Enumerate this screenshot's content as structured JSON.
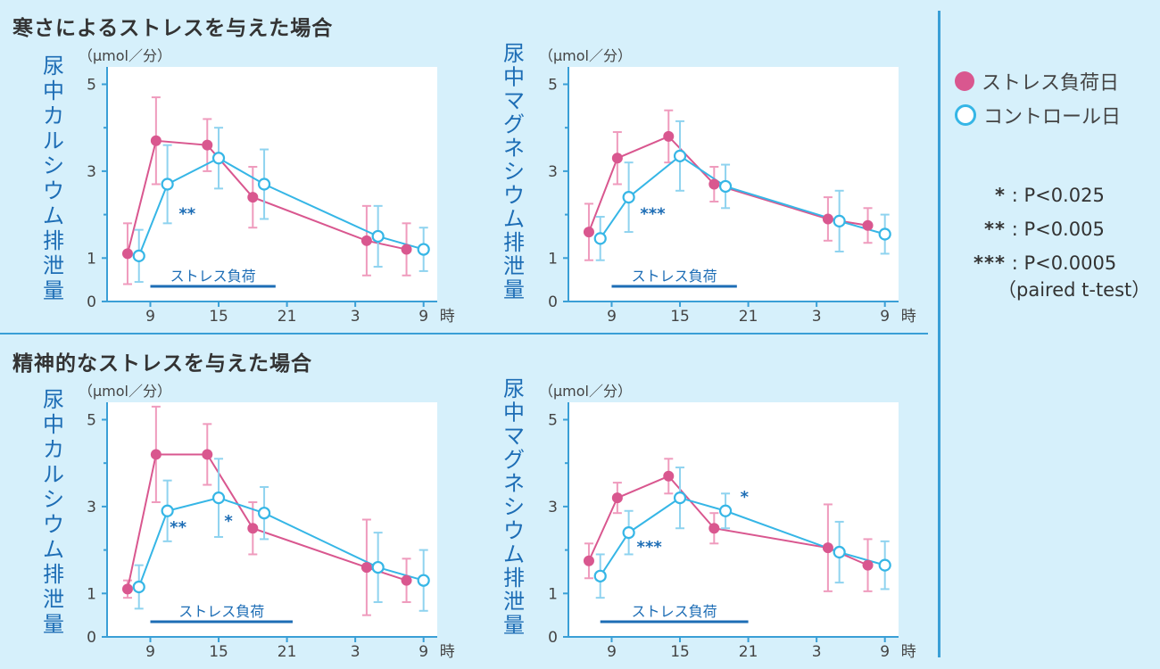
{
  "sections": [
    {
      "title": "寒さによるストレスを与えた場合"
    },
    {
      "title": "精神的なストレスを与えた場合"
    }
  ],
  "legend": {
    "stress_label": "ストレス負荷日",
    "control_label": "コントロール日",
    "stress_color": "#d9578f",
    "control_color": "#36b6e6"
  },
  "significance": [
    {
      "key": "*",
      "text": ": P<0.025"
    },
    {
      "key": "**",
      "text": ": P<0.005"
    },
    {
      "key": "***",
      "text": ": P<0.0005"
    }
  ],
  "significance_note": "（paired t-test）",
  "chart_data": [
    {
      "type": "line",
      "ylabel": "尿中カルシウム排泄量",
      "unit": "（μmol／分）",
      "xunit": "時",
      "xticks": [
        "9",
        "15",
        "21",
        "3",
        "9"
      ],
      "yticks": [
        "0",
        "1",
        "3",
        "5"
      ],
      "ylim": [
        0,
        5.4
      ],
      "stress_period_label": "ストレス負荷",
      "stress_period": [
        9,
        20
      ],
      "annotations": [
        {
          "text": "**",
          "x": 11.5,
          "y": 1.9
        }
      ],
      "series": [
        {
          "name": "ストレス負荷日",
          "x": [
            7,
            9.5,
            14,
            18,
            28,
            31.5
          ],
          "y": [
            1.1,
            3.7,
            3.6,
            2.4,
            1.4,
            1.2
          ],
          "err": [
            0.7,
            1.0,
            0.6,
            0.7,
            0.8,
            0.6
          ]
        },
        {
          "name": "コントロール日",
          "x": [
            8,
            10.5,
            15,
            19,
            29,
            33
          ],
          "y": [
            1.05,
            2.7,
            3.3,
            2.7,
            1.5,
            1.2
          ],
          "err": [
            0.6,
            0.9,
            0.7,
            0.8,
            0.7,
            0.5
          ]
        }
      ]
    },
    {
      "type": "line",
      "ylabel": "尿中マグネシウム排泄量",
      "unit": "（μmol／分）",
      "xunit": "時",
      "xticks": [
        "9",
        "15",
        "21",
        "3",
        "9"
      ],
      "yticks": [
        "0",
        "1",
        "3",
        "5"
      ],
      "ylim": [
        0,
        5.4
      ],
      "stress_period_label": "ストレス負荷",
      "stress_period": [
        9,
        20
      ],
      "annotations": [
        {
          "text": "***",
          "x": 11.5,
          "y": 1.9
        }
      ],
      "series": [
        {
          "name": "ストレス負荷日",
          "x": [
            7,
            9.5,
            14,
            18,
            28,
            31.5
          ],
          "y": [
            1.6,
            3.3,
            3.8,
            2.7,
            1.9,
            1.75
          ],
          "err": [
            0.65,
            0.6,
            0.6,
            0.4,
            0.5,
            0.4
          ]
        },
        {
          "name": "コントロール日",
          "x": [
            8,
            10.5,
            15,
            19,
            29,
            33
          ],
          "y": [
            1.45,
            2.4,
            3.35,
            2.65,
            1.85,
            1.55
          ],
          "err": [
            0.5,
            0.8,
            0.8,
            0.5,
            0.7,
            0.45
          ]
        }
      ]
    },
    {
      "type": "line",
      "ylabel": "尿中カルシウム排泄量",
      "unit": "（μmol／分）",
      "xunit": "時",
      "xticks": [
        "9",
        "15",
        "21",
        "3",
        "9"
      ],
      "yticks": [
        "0",
        "1",
        "3",
        "5"
      ],
      "ylim": [
        0,
        5.4
      ],
      "stress_period_label": "ストレス負荷",
      "stress_period": [
        9,
        21.5
      ],
      "annotations": [
        {
          "text": "**",
          "x": 10.7,
          "y": 2.4
        },
        {
          "text": "*",
          "x": 15.5,
          "y": 2.55
        }
      ],
      "series": [
        {
          "name": "ストレス負荷日",
          "x": [
            7,
            9.5,
            14,
            18,
            28,
            31.5
          ],
          "y": [
            1.1,
            4.2,
            4.2,
            2.5,
            1.6,
            1.3
          ],
          "err": [
            0.2,
            1.1,
            0.7,
            0.6,
            1.1,
            0.5
          ]
        },
        {
          "name": "コントロール日",
          "x": [
            8,
            10.5,
            15,
            19,
            29,
            33
          ],
          "y": [
            1.15,
            2.9,
            3.2,
            2.85,
            1.6,
            1.3
          ],
          "err": [
            0.5,
            0.7,
            0.9,
            0.6,
            0.8,
            0.7
          ]
        }
      ]
    },
    {
      "type": "line",
      "ylabel": "尿中マグネシウム排泄量",
      "unit": "（μmol／分）",
      "xunit": "時",
      "xticks": [
        "9",
        "15",
        "21",
        "3",
        "9"
      ],
      "yticks": [
        "0",
        "1",
        "3",
        "5"
      ],
      "ylim": [
        0,
        5.4
      ],
      "stress_period_label": "ストレス負荷",
      "stress_period": [
        8,
        21
      ],
      "annotations": [
        {
          "text": "***",
          "x": 11.2,
          "y": 1.95
        },
        {
          "text": "*",
          "x": 20.3,
          "y": 3.1
        }
      ],
      "series": [
        {
          "name": "ストレス負荷日",
          "x": [
            7,
            9.5,
            14,
            18,
            28,
            31.5
          ],
          "y": [
            1.75,
            3.2,
            3.7,
            2.5,
            2.05,
            1.65
          ],
          "err": [
            0.4,
            0.35,
            0.4,
            0.35,
            1.0,
            0.6
          ]
        },
        {
          "name": "コントロール日",
          "x": [
            8,
            10.5,
            15,
            19,
            29,
            33
          ],
          "y": [
            1.4,
            2.4,
            3.2,
            2.9,
            1.95,
            1.65
          ],
          "err": [
            0.5,
            0.5,
            0.7,
            0.4,
            0.7,
            0.55
          ]
        }
      ]
    }
  ]
}
